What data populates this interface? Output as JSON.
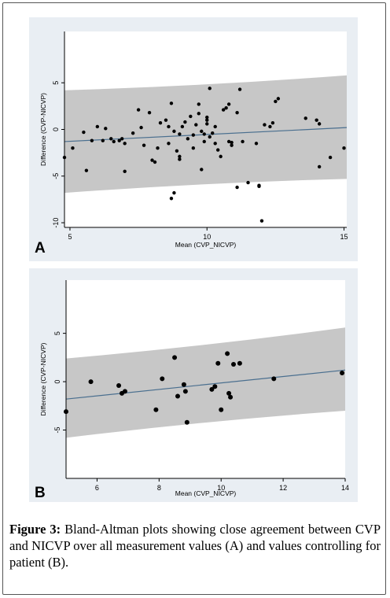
{
  "caption": {
    "label": "Figure 3:",
    "text": "Bland-Altman plots showing close agreement between CVP and NICVP over all measurement values (A) and values controlling for patient (B)."
  },
  "colors": {
    "band": "#c7c7c7",
    "line": "#4a6f8f",
    "point": "#000000",
    "panel_bg": "#e9eef3"
  },
  "chart_data": [
    {
      "type": "scatter",
      "panel_label": "A",
      "xlabel": "Mean (CVP_NICVP)",
      "ylabel": "Difference (CVP-NICVP)",
      "xlim": [
        4.8,
        15.1
      ],
      "ylim": [
        -10.5,
        10.5
      ],
      "xticks": [
        5,
        10,
        15
      ],
      "yticks": [
        5,
        0,
        -5,
        -10
      ],
      "grid": false,
      "regression_line": {
        "x": [
          4.8,
          15.1
        ],
        "y": [
          -1.3,
          0.2
        ]
      },
      "confidence_band": {
        "x": [
          4.8,
          15.1
        ],
        "upper": [
          4.2,
          5.8
        ],
        "lower": [
          -6.8,
          -5.3
        ]
      },
      "points": [
        [
          4.8,
          -3.0
        ],
        [
          5.1,
          -2.0
        ],
        [
          5.5,
          -0.3
        ],
        [
          5.6,
          -4.4
        ],
        [
          5.8,
          -1.2
        ],
        [
          6.0,
          0.3
        ],
        [
          6.2,
          -1.2
        ],
        [
          6.3,
          0.1
        ],
        [
          6.5,
          -1.0
        ],
        [
          6.6,
          -1.3
        ],
        [
          6.8,
          -1.2
        ],
        [
          6.9,
          -1.0
        ],
        [
          7.0,
          -1.5
        ],
        [
          7.0,
          -4.5
        ],
        [
          7.3,
          -0.4
        ],
        [
          7.5,
          2.1
        ],
        [
          7.6,
          0.2
        ],
        [
          7.7,
          -1.7
        ],
        [
          7.9,
          1.8
        ],
        [
          8.0,
          -3.3
        ],
        [
          8.1,
          -3.5
        ],
        [
          8.2,
          -2.0
        ],
        [
          8.3,
          0.7
        ],
        [
          8.5,
          1.0
        ],
        [
          8.6,
          0.3
        ],
        [
          8.6,
          -1.5
        ],
        [
          8.7,
          2.8
        ],
        [
          8.7,
          -7.4
        ],
        [
          8.8,
          -6.8
        ],
        [
          8.8,
          -0.2
        ],
        [
          8.9,
          -2.3
        ],
        [
          9.0,
          -0.5
        ],
        [
          9.0,
          -2.9
        ],
        [
          9.0,
          -3.2
        ],
        [
          9.1,
          0.3
        ],
        [
          9.2,
          0.8
        ],
        [
          9.3,
          -1.0
        ],
        [
          9.4,
          1.4
        ],
        [
          9.5,
          -0.6
        ],
        [
          9.5,
          -2.0
        ],
        [
          9.6,
          0.5
        ],
        [
          9.7,
          1.7
        ],
        [
          9.7,
          2.7
        ],
        [
          9.8,
          -0.2
        ],
        [
          9.8,
          -4.3
        ],
        [
          9.9,
          -0.5
        ],
        [
          9.9,
          -1.3
        ],
        [
          10.0,
          1.3
        ],
        [
          10.0,
          1.0
        ],
        [
          10.0,
          0.6
        ],
        [
          10.1,
          -0.8
        ],
        [
          10.1,
          4.4
        ],
        [
          10.2,
          -0.4
        ],
        [
          10.3,
          0.3
        ],
        [
          10.3,
          -1.5
        ],
        [
          10.4,
          -2.2
        ],
        [
          10.5,
          -2.9
        ],
        [
          10.6,
          2.1
        ],
        [
          10.7,
          2.3
        ],
        [
          10.8,
          2.7
        ],
        [
          10.8,
          -1.3
        ],
        [
          10.9,
          -1.4
        ],
        [
          10.9,
          -1.7
        ],
        [
          11.1,
          -6.2
        ],
        [
          11.1,
          1.8
        ],
        [
          11.2,
          4.3
        ],
        [
          11.3,
          -1.3
        ],
        [
          11.5,
          -5.7
        ],
        [
          11.8,
          -1.5
        ],
        [
          11.9,
          -6.0
        ],
        [
          11.9,
          -6.1
        ],
        [
          12.0,
          -9.8
        ],
        [
          12.1,
          0.5
        ],
        [
          12.3,
          0.3
        ],
        [
          12.4,
          0.7
        ],
        [
          12.5,
          3.0
        ],
        [
          12.6,
          3.3
        ],
        [
          13.6,
          1.2
        ],
        [
          14.0,
          1.0
        ],
        [
          14.1,
          0.6
        ],
        [
          14.1,
          -4.0
        ],
        [
          14.5,
          -3.0
        ],
        [
          15.0,
          -2.0
        ]
      ]
    },
    {
      "type": "scatter",
      "panel_label": "B",
      "xlabel": "Mean (CVP_NICVP)",
      "ylabel": "Difference (CVP-NICVP)",
      "xlim": [
        5.0,
        14.0
      ],
      "ylim": [
        -10.0,
        10.5
      ],
      "xticks": [
        6,
        8,
        10,
        12,
        14
      ],
      "yticks": [
        5,
        0,
        -5
      ],
      "grid": false,
      "regression_line": {
        "x": [
          5.0,
          14.0
        ],
        "y": [
          -1.8,
          1.2
        ]
      },
      "confidence_band": {
        "x": [
          5.0,
          14.0
        ],
        "upper": [
          2.4,
          5.6
        ],
        "lower": [
          -5.8,
          -3.0
        ]
      },
      "points": [
        [
          5.0,
          -3.1
        ],
        [
          5.8,
          0.0
        ],
        [
          6.7,
          -0.4
        ],
        [
          6.8,
          -1.2
        ],
        [
          6.9,
          -1.0
        ],
        [
          7.9,
          -2.9
        ],
        [
          8.1,
          0.3
        ],
        [
          8.5,
          2.5
        ],
        [
          8.6,
          -1.5
        ],
        [
          8.8,
          -0.3
        ],
        [
          8.85,
          -1.0
        ],
        [
          8.9,
          -4.2
        ],
        [
          9.7,
          -0.8
        ],
        [
          9.8,
          -0.5
        ],
        [
          9.9,
          1.9
        ],
        [
          10.0,
          -2.9
        ],
        [
          10.2,
          2.9
        ],
        [
          10.25,
          -1.2
        ],
        [
          10.3,
          -1.6
        ],
        [
          10.4,
          1.8
        ],
        [
          10.6,
          1.9
        ],
        [
          11.7,
          0.3
        ],
        [
          13.9,
          0.9
        ]
      ]
    }
  ]
}
